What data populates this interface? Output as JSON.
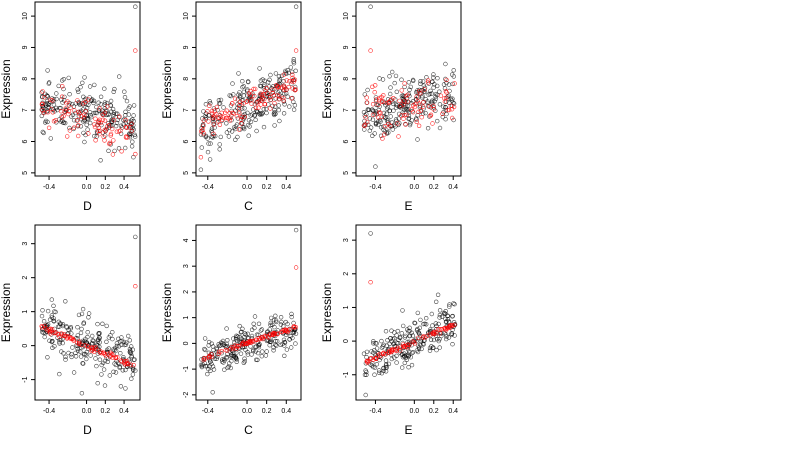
{
  "chart_data": [
    {
      "type": "scatter",
      "xlabel": "D",
      "ylabel": "Expression",
      "xlim": [
        -0.55,
        0.57
      ],
      "ylim": [
        4.9,
        10.45
      ],
      "xticks": [
        "-0.4",
        "0.0",
        "0.2",
        "0.4"
      ],
      "xtick_values": [
        -0.4,
        0.0,
        0.2,
        0.4
      ],
      "yticks": [
        "5",
        "6",
        "7",
        "8",
        "9",
        "10"
      ],
      "ytick_values": [
        5,
        6,
        7,
        8,
        9,
        10
      ],
      "colors": {
        "observed": "#000000",
        "fitted": "#ff0000"
      },
      "series": [
        {
          "role": "observed",
          "trend": {
            "x": [
              -0.48,
              0.52
            ],
            "y": [
              7.3,
              6.6
            ]
          },
          "noise": 0.65,
          "n": 240,
          "extra": [
            [
              0.52,
              10.3
            ],
            [
              0.5,
              5.5
            ],
            [
              0.15,
              5.4
            ]
          ]
        },
        {
          "role": "fitted",
          "trend": {
            "x": [
              -0.48,
              0.52
            ],
            "y": [
              7.2,
              6.2
            ]
          },
          "noise": 0.5,
          "n": 90,
          "extra": [
            [
              0.52,
              8.9
            ],
            [
              0.52,
              5.6
            ]
          ]
        }
      ]
    },
    {
      "type": "scatter",
      "xlabel": "C",
      "ylabel": "Expression",
      "xlim": [
        -0.52,
        0.55
      ],
      "ylim": [
        4.9,
        10.45
      ],
      "xticks": [
        "-0.4",
        "0.0",
        "0.2",
        "0.4"
      ],
      "xtick_values": [
        -0.4,
        0.0,
        0.2,
        0.4
      ],
      "yticks": [
        "5",
        "6",
        "7",
        "8",
        "9",
        "10"
      ],
      "ytick_values": [
        5,
        6,
        7,
        8,
        9,
        10
      ],
      "colors": {
        "observed": "#000000",
        "fitted": "#ff0000"
      },
      "series": [
        {
          "role": "observed",
          "trend": {
            "x": [
              -0.47,
              0.5
            ],
            "y": [
              6.4,
              7.8
            ]
          },
          "noise": 0.6,
          "n": 240,
          "extra": [
            [
              0.5,
              10.3
            ],
            [
              -0.47,
              5.1
            ]
          ]
        },
        {
          "role": "fitted",
          "trend": {
            "x": [
              -0.47,
              0.5
            ],
            "y": [
              6.5,
              7.9
            ]
          },
          "noise": 0.35,
          "n": 110,
          "extra": [
            [
              0.5,
              8.9
            ],
            [
              -0.47,
              5.5
            ]
          ]
        }
      ]
    },
    {
      "type": "scatter",
      "xlabel": "E",
      "ylabel": "Expression",
      "xlim": [
        -0.6,
        0.48
      ],
      "ylim": [
        4.9,
        10.45
      ],
      "xticks": [
        "-0.4",
        "0.0",
        "0.2",
        "0.4"
      ],
      "xtick_values": [
        -0.4,
        0.0,
        0.2,
        0.4
      ],
      "yticks": [
        "5",
        "6",
        "7",
        "8",
        "9",
        "10"
      ],
      "ytick_values": [
        5,
        6,
        7,
        8,
        9,
        10
      ],
      "colors": {
        "observed": "#000000",
        "fitted": "#ff0000"
      },
      "series": [
        {
          "role": "observed",
          "trend": {
            "x": [
              -0.52,
              0.42
            ],
            "y": [
              6.8,
              7.5
            ]
          },
          "noise": 0.65,
          "n": 240,
          "extra": [
            [
              -0.45,
              10.3
            ],
            [
              -0.4,
              5.2
            ]
          ]
        },
        {
          "role": "fitted",
          "trend": {
            "x": [
              -0.52,
              0.42
            ],
            "y": [
              6.9,
              7.3
            ]
          },
          "noise": 0.55,
          "n": 90,
          "extra": [
            [
              -0.45,
              8.9
            ]
          ]
        }
      ]
    },
    {
      "type": "scatter",
      "xlabel": "D",
      "ylabel": "Expression",
      "xlim": [
        -0.55,
        0.57
      ],
      "ylim": [
        -1.6,
        3.55
      ],
      "xticks": [
        "-0.4",
        "0.0",
        "0.2",
        "0.4"
      ],
      "xtick_values": [
        -0.4,
        0.0,
        0.2,
        0.4
      ],
      "yticks": [
        "-1",
        "0",
        "1",
        "2",
        "3"
      ],
      "ytick_values": [
        -1,
        0,
        1,
        2,
        3
      ],
      "colors": {
        "observed": "#000000",
        "fitted": "#ff0000"
      },
      "series": [
        {
          "role": "observed",
          "trend": {
            "x": [
              -0.48,
              0.52
            ],
            "y": [
              0.5,
              -0.5
            ]
          },
          "noise": 0.55,
          "n": 240,
          "extra": [
            [
              0.52,
              3.2
            ],
            [
              -0.05,
              -1.4
            ]
          ]
        },
        {
          "role": "fitted",
          "trend": {
            "x": [
              -0.48,
              0.52
            ],
            "y": [
              0.55,
              -0.6
            ]
          },
          "noise": 0.05,
          "n": 80,
          "extra": [
            [
              0.52,
              1.75
            ]
          ]
        }
      ]
    },
    {
      "type": "scatter",
      "xlabel": "C",
      "ylabel": "Expression",
      "xlim": [
        -0.52,
        0.55
      ],
      "ylim": [
        -2.2,
        4.6
      ],
      "xticks": [
        "-0.4",
        "0.0",
        "0.2",
        "0.4"
      ],
      "xtick_values": [
        -0.4,
        0.0,
        0.2,
        0.4
      ],
      "yticks": [
        "-2",
        "-1",
        "0",
        "1",
        "2",
        "3",
        "4"
      ],
      "ytick_values": [
        -2,
        -1,
        0,
        1,
        2,
        3,
        4
      ],
      "colors": {
        "observed": "#000000",
        "fitted": "#ff0000"
      },
      "series": [
        {
          "role": "observed",
          "trend": {
            "x": [
              -0.47,
              0.5
            ],
            "y": [
              -0.6,
              0.6
            ]
          },
          "noise": 0.55,
          "n": 240,
          "extra": [
            [
              0.5,
              4.4
            ],
            [
              -0.35,
              -1.9
            ]
          ]
        },
        {
          "role": "fitted",
          "trend": {
            "x": [
              -0.47,
              0.5
            ],
            "y": [
              -0.6,
              0.65
            ]
          },
          "noise": 0.05,
          "n": 80,
          "extra": [
            [
              0.5,
              2.95
            ]
          ]
        }
      ]
    },
    {
      "type": "scatter",
      "xlabel": "E",
      "ylabel": "Expression",
      "xlim": [
        -0.6,
        0.48
      ],
      "ylim": [
        -1.75,
        3.45
      ],
      "xticks": [
        "-0.4",
        "0.0",
        "0.2",
        "0.4"
      ],
      "xtick_values": [
        -0.4,
        0.0,
        0.2,
        0.4
      ],
      "yticks": [
        "-1",
        "0",
        "1",
        "2",
        "3"
      ],
      "ytick_values": [
        -1,
        0,
        1,
        2,
        3
      ],
      "colors": {
        "observed": "#000000",
        "fitted": "#ff0000"
      },
      "series": [
        {
          "role": "observed",
          "trend": {
            "x": [
              -0.52,
              0.42
            ],
            "y": [
              -0.6,
              0.55
            ]
          },
          "noise": 0.5,
          "n": 240,
          "extra": [
            [
              -0.45,
              3.2
            ],
            [
              -0.5,
              -1.6
            ]
          ]
        },
        {
          "role": "fitted",
          "trend": {
            "x": [
              -0.52,
              0.42
            ],
            "y": [
              -0.65,
              0.5
            ]
          },
          "noise": 0.05,
          "n": 80,
          "extra": [
            [
              -0.45,
              1.75
            ]
          ]
        }
      ]
    }
  ]
}
